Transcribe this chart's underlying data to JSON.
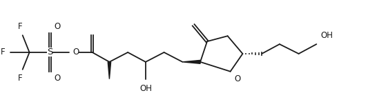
{
  "background_color": "#ffffff",
  "line_color": "#1a1a1a",
  "line_width": 1.3,
  "font_size": 8.5,
  "figsize": [
    5.62,
    1.48
  ],
  "dpi": 100,
  "xlim": [
    0,
    5.62
  ],
  "ylim": [
    0,
    1.48
  ]
}
